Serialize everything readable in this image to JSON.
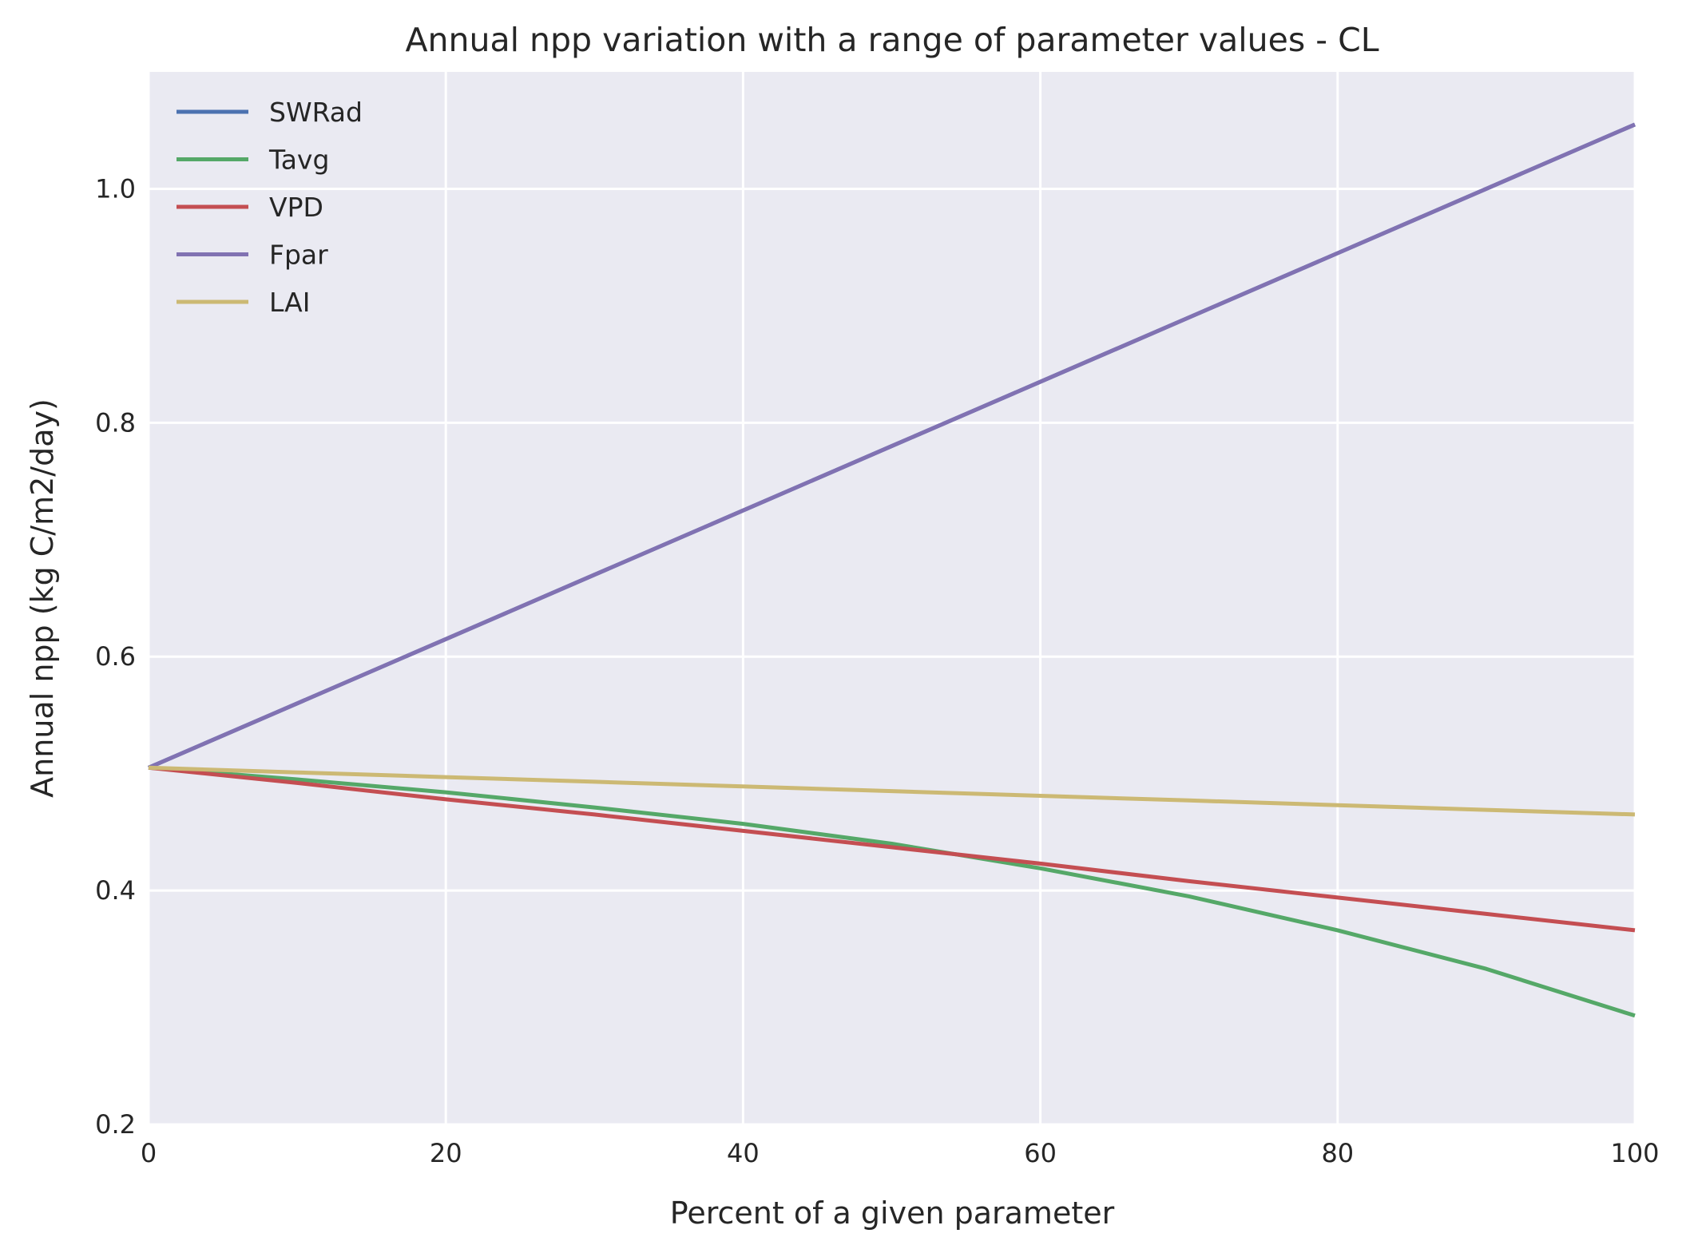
{
  "chart_data": {
    "type": "line",
    "title": "Annual npp variation with a range of parameter values - CL",
    "xlabel": "Percent of a given parameter",
    "ylabel": "Annual npp (kg C/m2/day)",
    "xlim": [
      0,
      100
    ],
    "ylim": [
      0.2,
      1.1
    ],
    "xticks": [
      0,
      20,
      40,
      60,
      80,
      100
    ],
    "xtick_labels": [
      "0",
      "20",
      "40",
      "60",
      "80",
      "100"
    ],
    "yticks": [
      0.2,
      0.4,
      0.6,
      0.8,
      1.0
    ],
    "ytick_labels": [
      "0.2",
      "0.4",
      "0.6",
      "0.8",
      "1.0"
    ],
    "grid": true,
    "legend_position": "top-left",
    "x": [
      0,
      10,
      20,
      30,
      40,
      50,
      60,
      70,
      80,
      90,
      100
    ],
    "series": [
      {
        "name": "SWRad",
        "color": "#4c72b0",
        "values": [
          0.505,
          0.56,
          0.615,
          0.67,
          0.725,
          0.78,
          0.835,
          0.89,
          0.945,
          1.0,
          1.055
        ]
      },
      {
        "name": "Tavg",
        "color": "#55a868",
        "values": [
          0.505,
          0.495,
          0.484,
          0.471,
          0.457,
          0.44,
          0.419,
          0.395,
          0.366,
          0.333,
          0.293
        ]
      },
      {
        "name": "VPD",
        "color": "#c44e52",
        "values": [
          0.505,
          0.492,
          0.478,
          0.465,
          0.451,
          0.437,
          0.423,
          0.408,
          0.394,
          0.38,
          0.366
        ]
      },
      {
        "name": "Fpar",
        "color": "#8172b2",
        "values": [
          0.505,
          0.56,
          0.615,
          0.67,
          0.725,
          0.78,
          0.835,
          0.89,
          0.945,
          1.0,
          1.055
        ]
      },
      {
        "name": "LAI",
        "color": "#ccb974",
        "values": [
          0.505,
          0.501,
          0.497,
          0.493,
          0.489,
          0.485,
          0.481,
          0.477,
          0.473,
          0.469,
          0.465
        ]
      }
    ]
  }
}
